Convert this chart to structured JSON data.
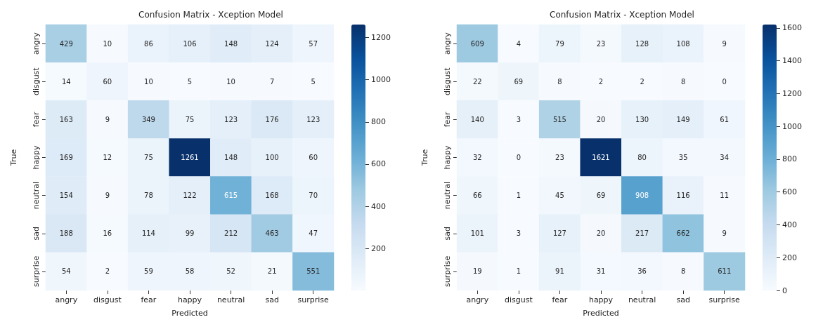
{
  "chart_data": [
    {
      "type": "heatmap",
      "title": "Confusion Matrix - Xception Model",
      "xlabel": "Predicted",
      "ylabel": "True",
      "categories": [
        "angry",
        "disgust",
        "fear",
        "happy",
        "neutral",
        "sad",
        "surprise"
      ],
      "y_categories": [
        "angry",
        "disgust",
        "fear",
        "happy",
        "neutral",
        "sad",
        "surprise"
      ],
      "cells": [
        [
          429,
          10,
          86,
          106,
          148,
          124,
          57
        ],
        [
          14,
          60,
          10,
          5,
          10,
          7,
          5
        ],
        [
          163,
          9,
          349,
          75,
          123,
          176,
          123
        ],
        [
          169,
          12,
          75,
          1261,
          148,
          100,
          60
        ],
        [
          154,
          9,
          78,
          122,
          615,
          168,
          70
        ],
        [
          188,
          16,
          114,
          99,
          212,
          463,
          47
        ],
        [
          54,
          2,
          59,
          58,
          52,
          21,
          551
        ]
      ],
      "clim": [
        2,
        1261
      ],
      "cticks": [
        200,
        400,
        600,
        800,
        1000,
        1200
      ],
      "data_labels": true
    },
    {
      "type": "heatmap",
      "title": "Confusion Matrix - Xception Model",
      "xlabel": "Predicted",
      "ylabel": "True",
      "categories": [
        "angry",
        "disgust",
        "fear",
        "happy",
        "neutral",
        "sad",
        "surprise"
      ],
      "y_categories": [
        "angry",
        "disgust",
        "fear",
        "happy",
        "neutral",
        "sad",
        "surprise"
      ],
      "cells": [
        [
          609,
          4,
          79,
          23,
          128,
          108,
          9
        ],
        [
          22,
          69,
          8,
          2,
          2,
          8,
          0
        ],
        [
          140,
          3,
          515,
          20,
          130,
          149,
          61
        ],
        [
          32,
          0,
          23,
          1621,
          80,
          35,
          34
        ],
        [
          66,
          1,
          45,
          69,
          908,
          116,
          11
        ],
        [
          101,
          3,
          127,
          20,
          217,
          662,
          9
        ],
        [
          19,
          1,
          91,
          31,
          36,
          8,
          611
        ]
      ],
      "clim": [
        0,
        1621
      ],
      "cticks": [
        0,
        200,
        400,
        600,
        800,
        1000,
        1200,
        1400,
        1600
      ],
      "data_labels": true
    }
  ]
}
